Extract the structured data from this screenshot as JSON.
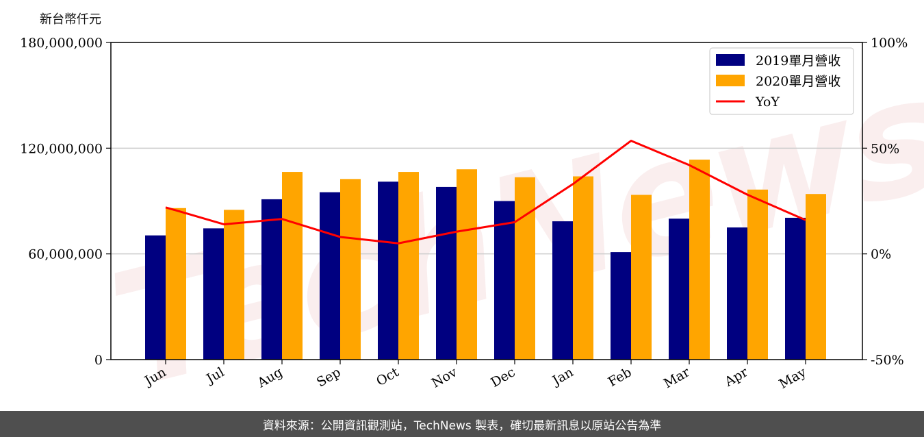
{
  "unit_label": "新台幣仟元",
  "watermark_text": "TechNews",
  "footer_text": "資料來源：公開資訊觀測站，TechNews 製表，確切最新訊息以原站公告為準",
  "colors": {
    "series_2019": "#000080",
    "series_2020": "#ffa500",
    "yoy": "#ff0000",
    "grid": "#cccccc",
    "footer_bg": "#4f4f4f"
  },
  "chart_data": {
    "type": "bar",
    "categories": [
      "Jun",
      "Jul",
      "Aug",
      "Sep",
      "Oct",
      "Nov",
      "Dec",
      "Jan",
      "Feb",
      "Mar",
      "Apr",
      "May"
    ],
    "series": [
      {
        "name": "2019單月營收",
        "values": [
          70500000,
          74500000,
          91000000,
          95000000,
          101000000,
          98000000,
          90000000,
          78500000,
          61000000,
          80000000,
          75000000,
          80500000
        ]
      },
      {
        "name": "2020單月營收",
        "values": [
          86000000,
          85000000,
          106500000,
          102500000,
          106500000,
          108000000,
          103500000,
          104000000,
          93500000,
          113500000,
          96500000,
          94000000
        ]
      }
    ],
    "line_series": {
      "name": "YoY",
      "axis": "right",
      "values": [
        22,
        14,
        16.5,
        8,
        5,
        10.5,
        15,
        33,
        53.5,
        42,
        28,
        16
      ]
    },
    "left_axis": {
      "min": 0,
      "max": 180000000,
      "ticks": [
        0,
        60000000,
        120000000,
        180000000
      ],
      "tick_labels": [
        "0",
        "60,000,000",
        "120,000,000",
        "180,000,000"
      ]
    },
    "right_axis": {
      "min": -50,
      "max": 100,
      "ticks": [
        -50,
        0,
        50,
        100
      ],
      "tick_labels": [
        "-50%",
        "0%",
        "50%",
        "100%"
      ]
    },
    "grid": "horizontal",
    "legend": {
      "placement": "top-right",
      "entries": [
        "2019單月營收",
        "2020單月營收",
        "YoY"
      ]
    }
  }
}
